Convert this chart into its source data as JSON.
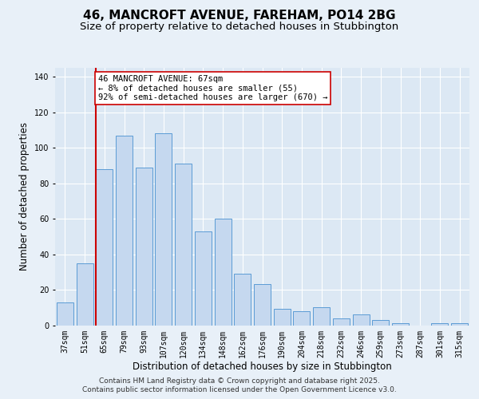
{
  "title": "46, MANCROFT AVENUE, FAREHAM, PO14 2BG",
  "subtitle": "Size of property relative to detached houses in Stubbington",
  "xlabel": "Distribution of detached houses by size in Stubbington",
  "ylabel": "Number of detached properties",
  "categories": [
    "37sqm",
    "51sqm",
    "65sqm",
    "79sqm",
    "93sqm",
    "107sqm",
    "120sqm",
    "134sqm",
    "148sqm",
    "162sqm",
    "176sqm",
    "190sqm",
    "204sqm",
    "218sqm",
    "232sqm",
    "246sqm",
    "259sqm",
    "273sqm",
    "287sqm",
    "301sqm",
    "315sqm"
  ],
  "values": [
    13,
    35,
    88,
    107,
    89,
    108,
    91,
    53,
    60,
    29,
    23,
    9,
    8,
    10,
    4,
    6,
    3,
    1,
    0,
    1,
    1
  ],
  "bar_color": "#c5d8ef",
  "bar_edge_color": "#5b9bd5",
  "vline_x_index": 2,
  "vline_color": "#cc0000",
  "annotation_line1": "46 MANCROFT AVENUE: 67sqm",
  "annotation_line2": "← 8% of detached houses are smaller (55)",
  "annotation_line3": "92% of semi-detached houses are larger (670) →",
  "annotation_box_facecolor": "#ffffff",
  "annotation_box_edgecolor": "#cc0000",
  "ylim": [
    0,
    145
  ],
  "yticks": [
    0,
    20,
    40,
    60,
    80,
    100,
    120,
    140
  ],
  "footer1": "Contains HM Land Registry data © Crown copyright and database right 2025.",
  "footer2": "Contains public sector information licensed under the Open Government Licence v3.0.",
  "fig_facecolor": "#e8f0f8",
  "plot_facecolor": "#dce8f4",
  "grid_color": "#ffffff",
  "title_fontsize": 11,
  "subtitle_fontsize": 9.5,
  "ylabel_fontsize": 8.5,
  "xlabel_fontsize": 8.5,
  "tick_fontsize": 7,
  "annotation_fontsize": 7.5,
  "footer_fontsize": 6.5
}
